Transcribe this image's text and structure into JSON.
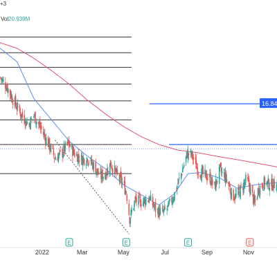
{
  "header": {
    "top_text": "+3",
    "vol_label": "Vol",
    "vol_value": "20.939M",
    "vol_color": "#26a69a"
  },
  "colors": {
    "up": "#26a69a",
    "down": "#ef5350",
    "ma_short": "#5b8def",
    "ma_long": "#e05470",
    "fib": "#333333",
    "level_line": "#2962ff",
    "badge_bg": "#2962ff",
    "earnings": "#26a69a",
    "earnings_neg": "#ef5350",
    "axis_text": "#333333"
  },
  "price_badge": {
    "text": "16.84"
  },
  "earnings_markers": [
    {
      "label": "E",
      "date": "2022-02-10",
      "kind": "positive"
    },
    {
      "label": "E",
      "date": "2022-05-05",
      "kind": "positive"
    },
    {
      "label": "E",
      "date": "2022-08-04",
      "kind": "positive"
    },
    {
      "label": "E",
      "date": "2022-11-03",
      "kind": "negative"
    }
  ],
  "x_axis": {
    "ticks": [
      {
        "label": "2022",
        "date": "2022-01-01"
      },
      {
        "label": "Mar",
        "date": "2022-03-01"
      },
      {
        "label": "May",
        "date": "2022-05-01"
      },
      {
        "label": "Jul",
        "date": "2022-07-01"
      },
      {
        "label": "Sep",
        "date": "2022-09-01"
      },
      {
        "label": "Nov",
        "date": "2022-11-01"
      }
    ]
  },
  "chart_data": {
    "type": "candlestick",
    "title": "",
    "x_range": [
      "2021-10-31",
      "2022-12-13"
    ],
    "y_range": [
      4.8,
      25.0
    ],
    "x_axis_labels": [
      "2022",
      "Mar",
      "May",
      "Jul",
      "Sep",
      "Nov"
    ],
    "fib_levels": [
      22.8,
      21.4,
      20.1,
      18.6,
      17.1,
      15.4,
      13.2,
      10.6
    ],
    "horizontal_levels": [
      {
        "price": 16.84,
        "from_date": "2022-06-08"
      },
      {
        "price": 13.2,
        "from_date": "2022-07-07"
      }
    ],
    "reference_line": {
      "price": 12.8,
      "style": "dotted"
    },
    "trend_line": {
      "from": {
        "date": "2022-01-20",
        "price": 13.6
      },
      "to": {
        "date": "2022-05-09",
        "price": 5.2
      },
      "style": "dashed"
    },
    "ma_short_anchors": [
      [
        "2021-10-31",
        21.8
      ],
      [
        "2021-11-25",
        20.6
      ],
      [
        "2021-12-20",
        17.3
      ],
      [
        "2022-01-15",
        15.4
      ],
      [
        "2022-02-10",
        13.5
      ],
      [
        "2022-03-08",
        12.2
      ],
      [
        "2022-04-05",
        11.0
      ],
      [
        "2022-05-01",
        9.6
      ],
      [
        "2022-05-27",
        8.7
      ],
      [
        "2022-06-22",
        7.8
      ],
      [
        "2022-07-15",
        8.8
      ],
      [
        "2022-08-04",
        10.6
      ],
      [
        "2022-08-25",
        10.7
      ],
      [
        "2022-09-20",
        10.2
      ],
      [
        "2022-10-15",
        9.3
      ],
      [
        "2022-11-10",
        9.6
      ],
      [
        "2022-12-13",
        9.8
      ]
    ],
    "ma_long_anchors": [
      [
        "2021-10-31",
        22.3
      ],
      [
        "2021-11-25",
        21.8
      ],
      [
        "2021-12-20",
        20.9
      ],
      [
        "2022-01-15",
        19.8
      ],
      [
        "2022-02-10",
        18.6
      ],
      [
        "2022-03-08",
        17.2
      ],
      [
        "2022-04-05",
        15.9
      ],
      [
        "2022-05-01",
        14.8
      ],
      [
        "2022-05-27",
        13.9
      ],
      [
        "2022-06-22",
        13.2
      ],
      [
        "2022-07-20",
        12.7
      ],
      [
        "2022-08-15",
        12.5
      ],
      [
        "2022-09-20",
        12.1
      ],
      [
        "2022-10-20",
        11.8
      ],
      [
        "2022-12-13",
        11.2
      ]
    ],
    "close_anchors": [
      [
        "2021-10-31",
        19.2
      ],
      [
        "2021-11-10",
        18.4
      ],
      [
        "2021-11-20",
        17.1
      ],
      [
        "2021-12-01",
        15.9
      ],
      [
        "2021-12-12",
        15.0
      ],
      [
        "2021-12-20",
        15.8
      ],
      [
        "2022-01-01",
        14.4
      ],
      [
        "2022-01-10",
        13.3
      ],
      [
        "2022-01-20",
        12.0
      ],
      [
        "2022-01-30",
        12.4
      ],
      [
        "2022-02-08",
        13.3
      ],
      [
        "2022-02-18",
        12.4
      ],
      [
        "2022-02-28",
        11.9
      ],
      [
        "2022-03-08",
        12.0
      ],
      [
        "2022-03-18",
        11.3
      ],
      [
        "2022-03-28",
        10.3
      ],
      [
        "2022-04-05",
        10.7
      ],
      [
        "2022-04-12",
        11.5
      ],
      [
        "2022-04-20",
        10.6
      ],
      [
        "2022-04-28",
        9.9
      ],
      [
        "2022-05-05",
        9.0
      ],
      [
        "2022-05-10",
        6.6
      ],
      [
        "2022-05-18",
        8.2
      ],
      [
        "2022-05-28",
        8.1
      ],
      [
        "2022-06-08",
        8.4
      ],
      [
        "2022-06-18",
        7.3
      ],
      [
        "2022-06-28",
        7.1
      ],
      [
        "2022-07-06",
        7.6
      ],
      [
        "2022-07-15",
        8.8
      ],
      [
        "2022-07-25",
        10.6
      ],
      [
        "2022-08-03",
        12.4
      ],
      [
        "2022-08-10",
        12.2
      ],
      [
        "2022-08-18",
        11.0
      ],
      [
        "2022-08-26",
        10.5
      ],
      [
        "2022-09-05",
        10.2
      ],
      [
        "2022-09-12",
        9.4
      ],
      [
        "2022-09-20",
        10.9
      ],
      [
        "2022-09-30",
        10.1
      ],
      [
        "2022-10-08",
        8.6
      ],
      [
        "2022-10-15",
        8.6
      ],
      [
        "2022-10-22",
        9.3
      ],
      [
        "2022-10-29",
        10.1
      ],
      [
        "2022-11-05",
        9.0
      ],
      [
        "2022-11-10",
        7.9
      ],
      [
        "2022-11-16",
        9.3
      ],
      [
        "2022-11-25",
        9.8
      ],
      [
        "2022-12-05",
        9.6
      ],
      [
        "2022-12-13",
        9.7
      ]
    ]
  }
}
